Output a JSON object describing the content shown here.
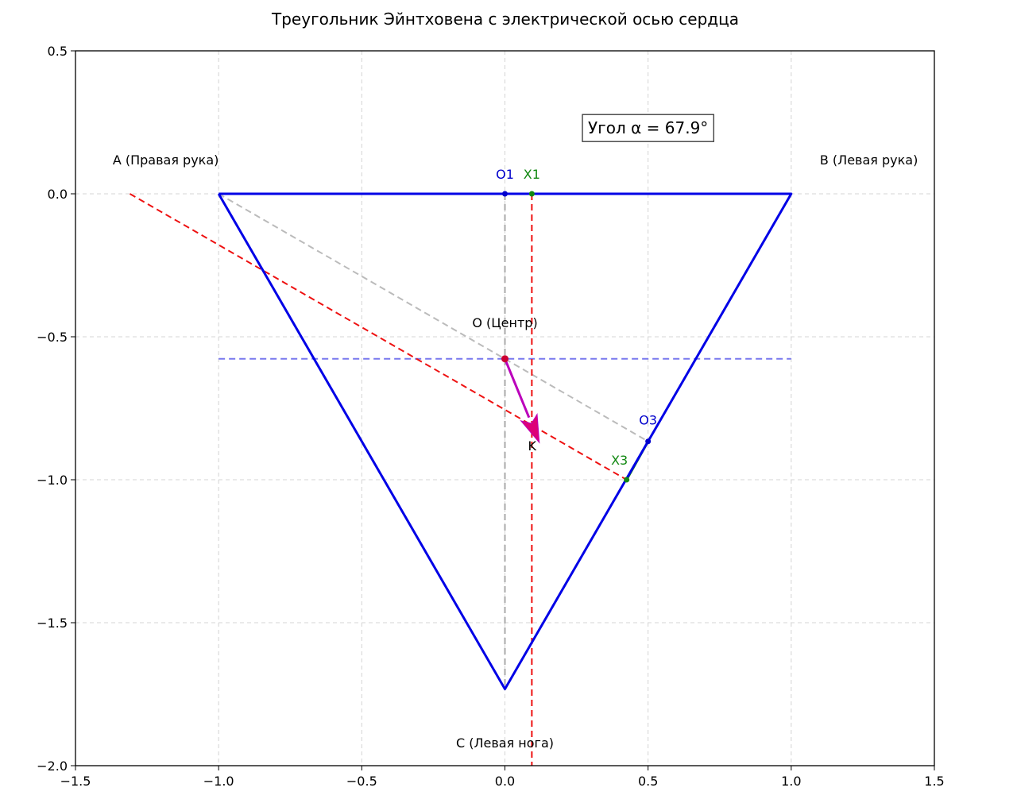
{
  "chart_data": {
    "type": "line",
    "title": "Треугольник Эйнтховена с электрической осью сердца",
    "xlabel": "",
    "ylabel": "",
    "xlim": [
      -1.5,
      1.5
    ],
    "ylim": [
      -2.0,
      0.5
    ],
    "grid": true,
    "x_ticks": [
      -1.5,
      -1.0,
      -0.5,
      0.0,
      0.5,
      1.0,
      1.5
    ],
    "x_tick_labels": [
      "−1.5",
      "−1.0",
      "−0.5",
      "0.0",
      "0.5",
      "1.0",
      "1.5"
    ],
    "y_ticks": [
      0.5,
      0.0,
      -0.5,
      -1.0,
      -1.5,
      -2.0
    ],
    "y_tick_labels": [
      "0.5",
      "0.0",
      "−0.5",
      "−1.0",
      "−1.5",
      "−2.0"
    ],
    "series": [
      {
        "id": "triangle",
        "color": "#0000e6",
        "style": "solid",
        "width": 3,
        "points": [
          [
            -1.0,
            0.0
          ],
          [
            1.0,
            0.0
          ],
          [
            0.0,
            -1.732
          ],
          [
            -1.0,
            0.0
          ]
        ]
      },
      {
        "id": "center-horizontal",
        "color": "#7878ee",
        "style": "dashed",
        "width": 2,
        "points": [
          [
            -1.0,
            -0.577
          ],
          [
            1.0,
            -0.577
          ]
        ]
      },
      {
        "id": "median-a-o3",
        "color": "#bbbbbb",
        "style": "dashed",
        "width": 2,
        "points": [
          [
            -1.0,
            0.0
          ],
          [
            0.5,
            -0.866
          ]
        ]
      },
      {
        "id": "median-o1-c",
        "color": "#aaaaaa",
        "style": "dashed",
        "width": 2,
        "points": [
          [
            0.0,
            0.0
          ],
          [
            0.0,
            -1.732
          ]
        ]
      },
      {
        "id": "perpendicular-x1",
        "color": "#ee1111",
        "style": "dashed",
        "width": 2,
        "points": [
          [
            0.094,
            0.0
          ],
          [
            0.094,
            -2.0
          ]
        ]
      },
      {
        "id": "perpendicular-x3",
        "color": "#ee1111",
        "style": "dashed",
        "width": 2,
        "points": [
          [
            -1.31,
            0.0
          ],
          [
            0.425,
            -1.0
          ]
        ]
      },
      {
        "id": "projection-lead1",
        "color": "#118811",
        "style": "solid",
        "width": 3,
        "points": [
          [
            0.0,
            0.0
          ],
          [
            0.094,
            0.0
          ]
        ]
      },
      {
        "id": "projection-lead3",
        "color": "#118811",
        "style": "solid",
        "width": 3,
        "points": [
          [
            0.5,
            -0.866
          ],
          [
            0.425,
            -1.0
          ]
        ]
      }
    ],
    "points": [
      {
        "id": "O1",
        "x": 0.0,
        "y": 0.0,
        "color": "#0000cc"
      },
      {
        "id": "X1",
        "x": 0.094,
        "y": 0.0,
        "color": "#118811"
      },
      {
        "id": "O3",
        "x": 0.5,
        "y": -0.866,
        "color": "#0000cc"
      },
      {
        "id": "X3",
        "x": 0.425,
        "y": -1.0,
        "color": "#118811"
      },
      {
        "id": "O",
        "x": 0.0,
        "y": -0.577,
        "color": "#cc0033"
      }
    ],
    "arrow": {
      "from": [
        0.0,
        -0.577
      ],
      "to": [
        0.12,
        -0.87
      ],
      "color": "#bb00bb",
      "head_color": "#dd0077"
    },
    "annotations": [
      {
        "id": "A",
        "text": "A (Правая рука)",
        "x": -1.37,
        "y": 0.12,
        "anchor": "start",
        "color": "#000000"
      },
      {
        "id": "B",
        "text": "B (Левая рука)",
        "x": 1.1,
        "y": 0.12,
        "anchor": "start",
        "color": "#000000"
      },
      {
        "id": "C",
        "text": "C (Левая нога)",
        "x": 0.0,
        "y": -1.92,
        "anchor": "middle",
        "color": "#000000"
      },
      {
        "id": "O-label",
        "text": "O (Центр)",
        "x": 0.0,
        "y": -0.45,
        "anchor": "middle",
        "color": "#000000"
      },
      {
        "id": "O1-label",
        "text": "O1",
        "x": 0.0,
        "y": 0.07,
        "anchor": "middle",
        "color": "#0000cc"
      },
      {
        "id": "X1-label",
        "text": "X1",
        "x": 0.094,
        "y": 0.07,
        "anchor": "middle",
        "color": "#118811"
      },
      {
        "id": "O3-label",
        "text": "O3",
        "x": 0.5,
        "y": -0.79,
        "anchor": "middle",
        "color": "#0000cc"
      },
      {
        "id": "X3-label",
        "text": "X3",
        "x": 0.4,
        "y": -0.93,
        "anchor": "middle",
        "color": "#118811"
      },
      {
        "id": "K-label",
        "text": "K",
        "x": 0.095,
        "y": -0.88,
        "anchor": "middle",
        "color": "#000000"
      }
    ],
    "angle_box": {
      "text": "Угол α = 67.9°",
      "x": 0.5,
      "y": 0.23
    }
  }
}
